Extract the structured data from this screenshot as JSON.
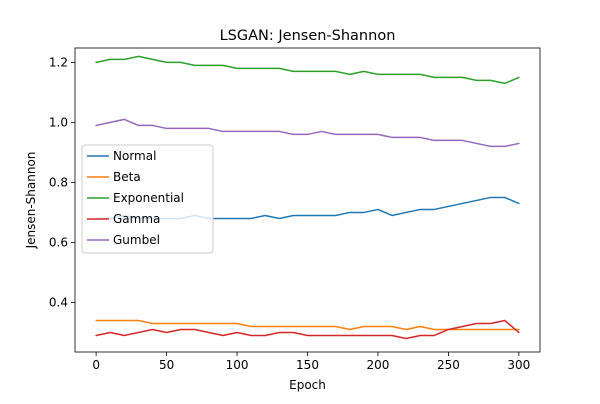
{
  "chart_data": {
    "type": "line",
    "title": "LSGAN: Jensen-Shannon",
    "xlabel": "Epoch",
    "ylabel": "Jensen-Shannon",
    "xlim": [
      -15,
      315
    ],
    "ylim": [
      0.235,
      1.248
    ],
    "xticks": [
      0,
      50,
      100,
      150,
      200,
      250,
      300
    ],
    "yticks": [
      0.4,
      0.6,
      0.8,
      1.0,
      1.2
    ],
    "xtick_labels": [
      "0",
      "50",
      "100",
      "150",
      "200",
      "250",
      "300"
    ],
    "ytick_labels": [
      "0.4",
      "0.6",
      "0.8",
      "1.0",
      "1.2"
    ],
    "grid": false,
    "legend_position": "center-left",
    "x": [
      0,
      10,
      20,
      30,
      40,
      50,
      60,
      70,
      80,
      90,
      100,
      110,
      120,
      130,
      140,
      150,
      160,
      170,
      180,
      190,
      200,
      210,
      220,
      230,
      240,
      250,
      260,
      270,
      280,
      290,
      300
    ],
    "series": [
      {
        "name": "Normal",
        "color": "#1f77b4",
        "values": [
          0.68,
          0.68,
          0.69,
          0.68,
          0.68,
          0.68,
          0.68,
          0.69,
          0.68,
          0.68,
          0.68,
          0.68,
          0.69,
          0.68,
          0.69,
          0.69,
          0.69,
          0.69,
          0.7,
          0.7,
          0.71,
          0.69,
          0.7,
          0.71,
          0.71,
          0.72,
          0.73,
          0.74,
          0.75,
          0.75,
          0.73
        ]
      },
      {
        "name": "Beta",
        "color": "#ff7f0e",
        "values": [
          0.34,
          0.34,
          0.34,
          0.34,
          0.33,
          0.33,
          0.33,
          0.33,
          0.33,
          0.33,
          0.33,
          0.32,
          0.32,
          0.32,
          0.32,
          0.32,
          0.32,
          0.32,
          0.31,
          0.32,
          0.32,
          0.32,
          0.31,
          0.32,
          0.31,
          0.31,
          0.31,
          0.31,
          0.31,
          0.31,
          0.31
        ]
      },
      {
        "name": "Exponential",
        "color": "#2ca02c",
        "values": [
          1.2,
          1.21,
          1.21,
          1.22,
          1.21,
          1.2,
          1.2,
          1.19,
          1.19,
          1.19,
          1.18,
          1.18,
          1.18,
          1.18,
          1.17,
          1.17,
          1.17,
          1.17,
          1.16,
          1.17,
          1.16,
          1.16,
          1.16,
          1.16,
          1.15,
          1.15,
          1.15,
          1.14,
          1.14,
          1.13,
          1.15
        ]
      },
      {
        "name": "Gamma",
        "color": "#d62728",
        "values": [
          0.29,
          0.3,
          0.29,
          0.3,
          0.31,
          0.3,
          0.31,
          0.31,
          0.3,
          0.29,
          0.3,
          0.29,
          0.29,
          0.3,
          0.3,
          0.29,
          0.29,
          0.29,
          0.29,
          0.29,
          0.29,
          0.29,
          0.28,
          0.29,
          0.29,
          0.31,
          0.32,
          0.33,
          0.33,
          0.34,
          0.3
        ]
      },
      {
        "name": "Gumbel",
        "color": "#9467bd",
        "values": [
          0.99,
          1.0,
          1.01,
          0.99,
          0.99,
          0.98,
          0.98,
          0.98,
          0.98,
          0.97,
          0.97,
          0.97,
          0.97,
          0.97,
          0.96,
          0.96,
          0.97,
          0.96,
          0.96,
          0.96,
          0.96,
          0.95,
          0.95,
          0.95,
          0.94,
          0.94,
          0.94,
          0.93,
          0.92,
          0.92,
          0.93
        ]
      }
    ]
  }
}
